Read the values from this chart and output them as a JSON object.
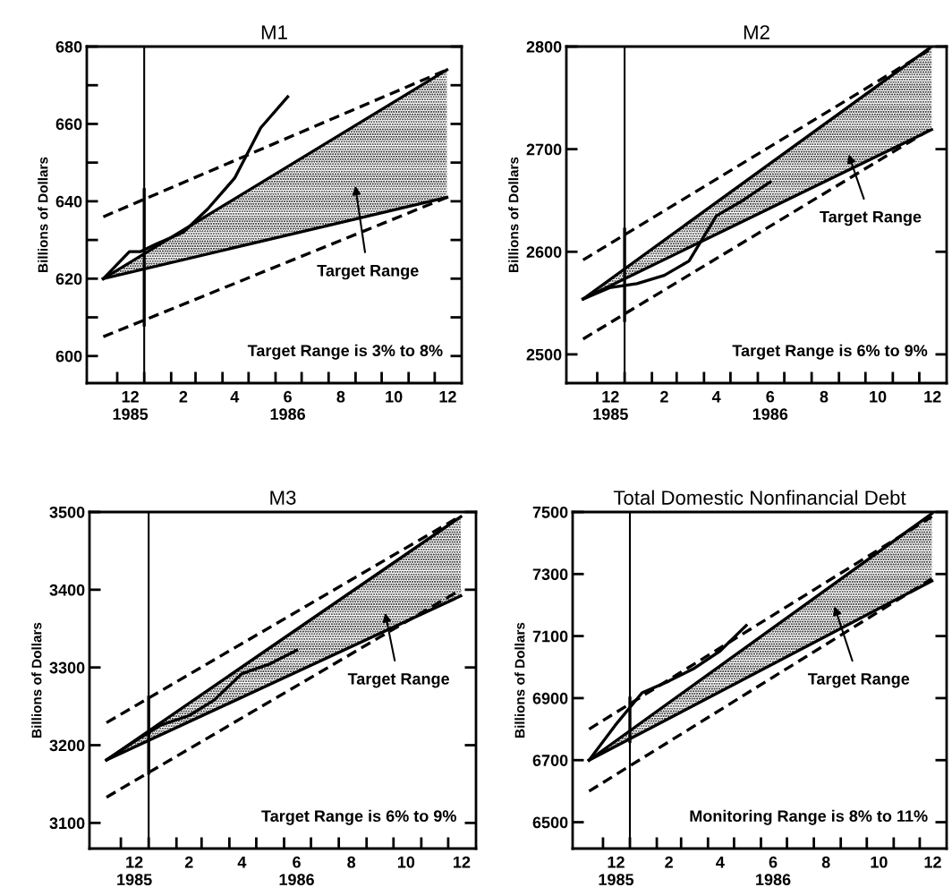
{
  "chart_data": [
    {
      "type": "line",
      "title": "M1",
      "ylabel": "Billions of Dollars",
      "xlim": [
        "1985-10-27",
        "1987-01-01"
      ],
      "ylim": [
        593,
        680
      ],
      "xticks": [
        {
          "value": "1985-12-16",
          "label": "12\n1985"
        },
        {
          "value": "1986-02-15",
          "label": "2"
        },
        {
          "value": "1986-04-15",
          "label": "4"
        },
        {
          "value": "1986-06-15",
          "label": "6\n1986"
        },
        {
          "value": "1986-08-15",
          "label": "8"
        },
        {
          "value": "1986-10-15",
          "label": "10"
        },
        {
          "value": "1986-12-16",
          "label": "12"
        },
        {
          "value": "1985-12-01",
          "label": null
        },
        {
          "value": "1986-01-01",
          "label": null
        },
        {
          "value": "1986-02-01",
          "label": null
        },
        {
          "value": "1986-03-01",
          "label": null
        },
        {
          "value": "1986-04-01",
          "label": null
        },
        {
          "value": "1986-05-01",
          "label": null
        },
        {
          "value": "1986-06-01",
          "label": null
        },
        {
          "value": "1986-07-01",
          "label": null
        },
        {
          "value": "1986-08-01",
          "label": null
        },
        {
          "value": "1986-09-01",
          "label": null
        },
        {
          "value": "1986-10-01",
          "label": null
        },
        {
          "value": "1986-11-01",
          "label": null
        },
        {
          "value": "1986-12-01",
          "label": null
        }
      ],
      "yticks": [
        600,
        {
          "value": 610,
          "label": null
        },
        620,
        {
          "value": 630,
          "label": null
        },
        640,
        {
          "value": 650,
          "label": null
        },
        660,
        {
          "value": 670,
          "label": null
        },
        680
      ],
      "grid": false,
      "legend": false,
      "series": [
        {
          "x": [
            "1985-11-15",
            "1986-12-15"
          ],
          "values": [
            620,
            674
          ],
          "lower": [
            620,
            641
          ],
          "upper": [
            620,
            674
          ],
          "color": "#000000",
          "line_style": "solid"
        },
        {
          "x": [
            "1985-11-15",
            "1986-12-15"
          ],
          "values": [
            620,
            641
          ],
          "color": "#000000",
          "line_style": "solid"
        },
        {
          "x": [
            "1985-11-15",
            "1986-12-15"
          ],
          "values": [
            636,
            674
          ],
          "color": "#000000",
          "line_style": "dashed"
        },
        {
          "x": [
            "1985-11-15",
            "1986-12-15"
          ],
          "values": [
            605,
            641
          ],
          "color": "#000000",
          "line_style": "dashed"
        },
        {
          "x": [
            "1986-01-01",
            "1986-01-01"
          ],
          "values": [
            608,
            643
          ],
          "color": "#000000",
          "line_style": "solid"
        },
        {
          "x": [
            "1985-11-15",
            "1985-12-15",
            "1985-12-28",
            "1986-01-15",
            "1986-02-15",
            "1986-03-15",
            "1986-04-15",
            "1986-05-15",
            "1986-06-15"
          ],
          "values": [
            620,
            627,
            627,
            629,
            632,
            638,
            646,
            659,
            667
          ],
          "color": "#000000",
          "line_style": "solid"
        }
      ],
      "ref_lines": [
        {
          "axis": "x",
          "value": "1986-01-01",
          "color": "#000000"
        }
      ],
      "annotations": [
        "Target Range",
        "Target Range is 3% to 8%"
      ]
    },
    {
      "type": "line",
      "title": "M2",
      "ylabel": "Billions of Dollars",
      "xlim": [
        "1985-10-27",
        "1987-01-01"
      ],
      "ylim": [
        2472,
        2800
      ],
      "xticks": [
        {
          "value": "1985-12-16",
          "label": "12\n1985"
        },
        {
          "value": "1986-02-15",
          "label": "2"
        },
        {
          "value": "1986-04-15",
          "label": "4"
        },
        {
          "value": "1986-06-15",
          "label": "6\n1986"
        },
        {
          "value": "1986-08-15",
          "label": "8"
        },
        {
          "value": "1986-10-15",
          "label": "10"
        },
        {
          "value": "1986-12-16",
          "label": "12"
        },
        {
          "value": "1985-12-01",
          "label": null
        },
        {
          "value": "1986-01-01",
          "label": null
        },
        {
          "value": "1986-02-01",
          "label": null
        },
        {
          "value": "1986-03-01",
          "label": null
        },
        {
          "value": "1986-04-01",
          "label": null
        },
        {
          "value": "1986-05-01",
          "label": null
        },
        {
          "value": "1986-06-01",
          "label": null
        },
        {
          "value": "1986-07-01",
          "label": null
        },
        {
          "value": "1986-08-01",
          "label": null
        },
        {
          "value": "1986-09-01",
          "label": null
        },
        {
          "value": "1986-10-01",
          "label": null
        },
        {
          "value": "1986-11-01",
          "label": null
        },
        {
          "value": "1986-12-01",
          "label": null
        }
      ],
      "yticks": [
        2500,
        2600,
        2700,
        2800
      ],
      "grid": false,
      "legend": false,
      "series": [
        {
          "x": [
            "1985-11-15",
            "1986-12-15"
          ],
          "values": [
            2554,
            2800
          ],
          "lower": [
            2554,
            2719
          ],
          "upper": [
            2554,
            2800
          ],
          "color": "#000000",
          "line_style": "solid"
        },
        {
          "x": [
            "1985-11-15",
            "1986-12-15"
          ],
          "values": [
            2554,
            2719
          ],
          "color": "#000000",
          "line_style": "solid"
        },
        {
          "x": [
            "1985-11-15",
            "1986-12-15"
          ],
          "values": [
            2592,
            2798
          ],
          "color": "#000000",
          "line_style": "dashed"
        },
        {
          "x": [
            "1985-11-15",
            "1986-12-15"
          ],
          "values": [
            2515,
            2720
          ],
          "color": "#000000",
          "line_style": "dashed"
        },
        {
          "x": [
            "1986-01-01",
            "1986-01-01"
          ],
          "values": [
            2533,
            2622
          ],
          "color": "#000000",
          "line_style": "solid"
        },
        {
          "x": [
            "1985-11-15",
            "1985-12-15",
            "1986-01-15",
            "1986-02-15",
            "1986-03-15",
            "1986-04-15",
            "1986-05-15",
            "1986-06-15"
          ],
          "values": [
            2554,
            2565,
            2569,
            2577,
            2591,
            2635,
            2650,
            2668
          ],
          "color": "#000000",
          "line_style": "solid"
        }
      ],
      "ref_lines": [
        {
          "axis": "x",
          "value": "1986-01-01",
          "color": "#000000"
        }
      ],
      "annotations": [
        "Target Range",
        "Target Range is 6% to 9%"
      ]
    },
    {
      "type": "line",
      "title": "M3",
      "ylabel": "Billions of Dollars",
      "xlim": [
        "1985-10-27",
        "1987-01-01"
      ],
      "ylim": [
        3067,
        3500
      ],
      "xticks": [
        {
          "value": "1985-12-16",
          "label": "12\n1985"
        },
        {
          "value": "1986-02-15",
          "label": "2"
        },
        {
          "value": "1986-04-15",
          "label": "4"
        },
        {
          "value": "1986-06-15",
          "label": "6\n1986"
        },
        {
          "value": "1986-08-15",
          "label": "8"
        },
        {
          "value": "1986-10-15",
          "label": "10"
        },
        {
          "value": "1986-12-16",
          "label": "12"
        },
        {
          "value": "1985-12-01",
          "label": null
        },
        {
          "value": "1986-01-01",
          "label": null
        },
        {
          "value": "1986-02-01",
          "label": null
        },
        {
          "value": "1986-03-01",
          "label": null
        },
        {
          "value": "1986-04-01",
          "label": null
        },
        {
          "value": "1986-05-01",
          "label": null
        },
        {
          "value": "1986-06-01",
          "label": null
        },
        {
          "value": "1986-07-01",
          "label": null
        },
        {
          "value": "1986-08-01",
          "label": null
        },
        {
          "value": "1986-09-01",
          "label": null
        },
        {
          "value": "1986-10-01",
          "label": null
        },
        {
          "value": "1986-11-01",
          "label": null
        },
        {
          "value": "1986-12-01",
          "label": null
        }
      ],
      "yticks": [
        3100,
        3200,
        3300,
        3400,
        3500
      ],
      "grid": false,
      "legend": false,
      "series": [
        {
          "x": [
            "1985-11-15",
            "1986-12-15"
          ],
          "values": [
            3181,
            3494
          ],
          "lower": [
            3181,
            3392
          ],
          "upper": [
            3181,
            3494
          ],
          "color": "#000000",
          "line_style": "solid"
        },
        {
          "x": [
            "1985-11-15",
            "1986-12-15"
          ],
          "values": [
            3181,
            3392
          ],
          "color": "#000000",
          "line_style": "solid"
        },
        {
          "x": [
            "1985-11-15",
            "1986-12-15"
          ],
          "values": [
            3229,
            3495
          ],
          "color": "#000000",
          "line_style": "dashed"
        },
        {
          "x": [
            "1985-11-15",
            "1986-12-15"
          ],
          "values": [
            3133,
            3400
          ],
          "color": "#000000",
          "line_style": "dashed"
        },
        {
          "x": [
            "1986-01-01",
            "1986-01-01"
          ],
          "values": [
            3164,
            3262
          ],
          "color": "#000000",
          "line_style": "solid"
        },
        {
          "x": [
            "1985-11-15",
            "1985-12-15",
            "1986-01-15",
            "1986-02-15",
            "1986-03-15",
            "1986-04-15",
            "1986-05-15",
            "1986-06-15"
          ],
          "values": [
            3181,
            3204,
            3226,
            3238,
            3258,
            3292,
            3304,
            3322
          ],
          "color": "#000000",
          "line_style": "solid"
        }
      ],
      "ref_lines": [
        {
          "axis": "x",
          "value": "1986-01-01",
          "color": "#000000"
        }
      ],
      "annotations": [
        "Target Range",
        "Target Range is 6% to 9%"
      ]
    },
    {
      "type": "line",
      "title": "Total Domestic Nonfinancial Debt",
      "ylabel": "Billions of Dollars",
      "xlim": [
        "1985-10-27",
        "1987-01-01"
      ],
      "ylim": [
        6415,
        7500
      ],
      "xticks": [
        {
          "value": "1985-12-16",
          "label": "12\n1985"
        },
        {
          "value": "1986-02-15",
          "label": "2"
        },
        {
          "value": "1986-04-15",
          "label": "4"
        },
        {
          "value": "1986-06-15",
          "label": "6\n1986"
        },
        {
          "value": "1986-08-15",
          "label": "8"
        },
        {
          "value": "1986-10-15",
          "label": "10"
        },
        {
          "value": "1986-12-16",
          "label": "12"
        },
        {
          "value": "1985-12-01",
          "label": null
        },
        {
          "value": "1986-01-01",
          "label": null
        },
        {
          "value": "1986-02-01",
          "label": null
        },
        {
          "value": "1986-03-01",
          "label": null
        },
        {
          "value": "1986-04-01",
          "label": null
        },
        {
          "value": "1986-05-01",
          "label": null
        },
        {
          "value": "1986-06-01",
          "label": null
        },
        {
          "value": "1986-07-01",
          "label": null
        },
        {
          "value": "1986-08-01",
          "label": null
        },
        {
          "value": "1986-09-01",
          "label": null
        },
        {
          "value": "1986-10-01",
          "label": null
        },
        {
          "value": "1986-11-01",
          "label": null
        },
        {
          "value": "1986-12-01",
          "label": null
        }
      ],
      "yticks": [
        6500,
        6700,
        6900,
        7100,
        7300,
        7500
      ],
      "grid": false,
      "legend": false,
      "series": [
        {
          "x": [
            "1985-11-15",
            "1986-12-15"
          ],
          "values": [
            6700,
            7495
          ],
          "lower": [
            6700,
            7278
          ],
          "upper": [
            6700,
            7495
          ],
          "color": "#000000",
          "line_style": "solid"
        },
        {
          "x": [
            "1985-11-15",
            "1986-12-15"
          ],
          "values": [
            6700,
            7278
          ],
          "color": "#000000",
          "line_style": "solid"
        },
        {
          "x": [
            "1985-11-15",
            "1986-12-15"
          ],
          "values": [
            6800,
            7485
          ],
          "color": "#000000",
          "line_style": "dashed"
        },
        {
          "x": [
            "1985-11-15",
            "1986-12-15"
          ],
          "values": [
            6600,
            7285
          ],
          "color": "#000000",
          "line_style": "dashed"
        },
        {
          "x": [
            "1986-01-01",
            "1986-01-01"
          ],
          "values": [
            6760,
            6900
          ],
          "color": "#000000",
          "line_style": "solid"
        },
        {
          "x": [
            "1985-11-15",
            "1985-12-15",
            "1986-01-15",
            "1986-02-15",
            "1986-03-15",
            "1986-04-15",
            "1986-05-15"
          ],
          "values": [
            6700,
            6812,
            6917,
            6955,
            6994,
            7052,
            7134
          ],
          "color": "#000000",
          "line_style": "solid"
        }
      ],
      "ref_lines": [
        {
          "axis": "x",
          "value": "1986-01-01",
          "color": "#000000"
        }
      ],
      "annotations": [
        "Target Range",
        "Monitoring Range is 8% to 11%"
      ]
    }
  ]
}
